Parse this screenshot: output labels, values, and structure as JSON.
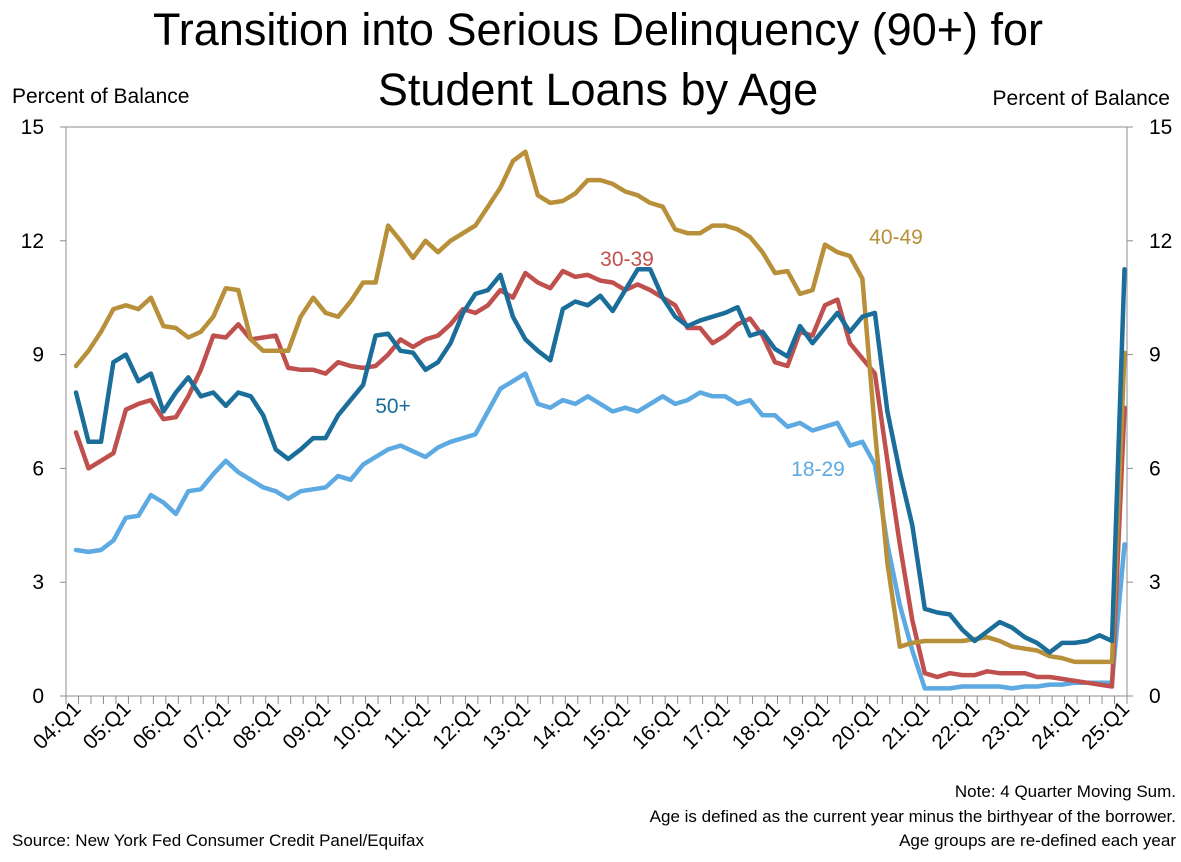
{
  "chart_data": {
    "type": "line",
    "title_line1": "Transition into Serious Delinquency (90+) for",
    "title_line2": "Student Loans by Age",
    "ylabel_left": "Percent of Balance",
    "ylabel_right": "Percent of Balance",
    "ylim": [
      0,
      15
    ],
    "yticks": [
      "0",
      "3",
      "6",
      "9",
      "12",
      "15"
    ],
    "x_tick_labels": [
      "04:Q1",
      "05:Q1",
      "06:Q1",
      "07:Q1",
      "08:Q1",
      "09:Q1",
      "10:Q1",
      "11:Q1",
      "12:Q1",
      "13:Q1",
      "14:Q1",
      "15:Q1",
      "16:Q1",
      "17:Q1",
      "18:Q1",
      "19:Q1",
      "20:Q1",
      "21:Q1",
      "22:Q1",
      "23:Q1",
      "24:Q1",
      "25:Q1"
    ],
    "x_start": "04:Q1",
    "x_end": "25:Q1",
    "grid": false,
    "legend": "inline labels",
    "series": [
      {
        "name": "18-29",
        "color": "#5DA9E1",
        "values": [
          3.85,
          3.8,
          3.85,
          4.1,
          4.7,
          4.75,
          5.3,
          5.1,
          4.8,
          5.4,
          5.45,
          5.85,
          6.2,
          5.9,
          5.7,
          5.5,
          5.4,
          5.2,
          5.4,
          5.45,
          5.5,
          5.8,
          5.7,
          6.1,
          6.3,
          6.5,
          6.6,
          6.45,
          6.3,
          6.55,
          6.7,
          6.8,
          6.9,
          7.5,
          8.1,
          8.3,
          8.5,
          7.7,
          7.6,
          7.8,
          7.7,
          7.9,
          7.7,
          7.5,
          7.6,
          7.5,
          7.7,
          7.9,
          7.7,
          7.8,
          8.0,
          7.9,
          7.9,
          7.7,
          7.8,
          7.4,
          7.4,
          7.1,
          7.2,
          7.0,
          7.1,
          7.2,
          6.6,
          6.7,
          6.1,
          4.0,
          2.4,
          1.2,
          0.2,
          0.2,
          0.2,
          0.25,
          0.25,
          0.25,
          0.25,
          0.2,
          0.25,
          0.25,
          0.3,
          0.3,
          0.35,
          0.35,
          0.35,
          0.35,
          4.0
        ]
      },
      {
        "name": "30-39",
        "color": "#C0504D",
        "values": [
          6.95,
          6.0,
          6.2,
          6.4,
          7.55,
          7.7,
          7.8,
          7.3,
          7.35,
          7.9,
          8.6,
          9.5,
          9.45,
          9.8,
          9.4,
          9.45,
          9.5,
          8.65,
          8.6,
          8.6,
          8.5,
          8.8,
          8.7,
          8.65,
          8.7,
          9.0,
          9.4,
          9.2,
          9.4,
          9.5,
          9.8,
          10.2,
          10.1,
          10.3,
          10.7,
          10.5,
          11.15,
          10.9,
          10.75,
          11.2,
          11.05,
          11.1,
          10.95,
          10.9,
          10.7,
          10.85,
          10.7,
          10.5,
          10.3,
          9.7,
          9.7,
          9.3,
          9.5,
          9.8,
          9.95,
          9.5,
          8.8,
          8.7,
          9.6,
          9.5,
          10.3,
          10.45,
          9.3,
          8.9,
          8.5,
          6.2,
          4.0,
          2.0,
          0.6,
          0.5,
          0.6,
          0.55,
          0.55,
          0.65,
          0.6,
          0.6,
          0.6,
          0.5,
          0.5,
          0.45,
          0.4,
          0.35,
          0.3,
          0.25,
          7.6
        ]
      },
      {
        "name": "40-49",
        "color": "#B8903A",
        "values": [
          8.7,
          9.1,
          9.6,
          10.2,
          10.3,
          10.2,
          10.5,
          9.75,
          9.7,
          9.45,
          9.6,
          10.0,
          10.75,
          10.7,
          9.4,
          9.1,
          9.1,
          9.1,
          10.0,
          10.5,
          10.1,
          10.0,
          10.4,
          10.9,
          10.9,
          12.4,
          12.0,
          11.55,
          12.0,
          11.7,
          12.0,
          12.2,
          12.4,
          12.9,
          13.4,
          14.1,
          14.35,
          13.2,
          13.0,
          13.05,
          13.25,
          13.6,
          13.6,
          13.5,
          13.3,
          13.2,
          13.0,
          12.9,
          12.3,
          12.2,
          12.2,
          12.4,
          12.4,
          12.3,
          12.1,
          11.7,
          11.15,
          11.2,
          10.6,
          10.7,
          11.9,
          11.7,
          11.6,
          11.0,
          7.0,
          3.5,
          1.3,
          1.4,
          1.45,
          1.45,
          1.45,
          1.45,
          1.5,
          1.55,
          1.45,
          1.3,
          1.25,
          1.2,
          1.05,
          1.0,
          0.9,
          0.9,
          0.9,
          0.9,
          9.05
        ]
      },
      {
        "name": "50+",
        "color": "#1A6E99",
        "values": [
          8.0,
          6.7,
          6.7,
          8.8,
          9.0,
          8.3,
          8.5,
          7.5,
          8.0,
          8.4,
          7.9,
          8.0,
          7.65,
          8.0,
          7.9,
          7.4,
          6.5,
          6.25,
          6.5,
          6.8,
          6.8,
          7.4,
          7.8,
          8.2,
          9.5,
          9.55,
          9.1,
          9.05,
          8.6,
          8.8,
          9.3,
          10.1,
          10.6,
          10.7,
          11.1,
          10.0,
          9.4,
          9.1,
          8.85,
          10.2,
          10.4,
          10.3,
          10.55,
          10.15,
          10.7,
          11.25,
          11.25,
          10.5,
          10.0,
          9.75,
          9.9,
          10.0,
          10.1,
          10.25,
          9.5,
          9.6,
          9.15,
          8.95,
          9.75,
          9.3,
          9.7,
          10.1,
          9.6,
          10.0,
          10.1,
          7.5,
          5.9,
          4.5,
          2.3,
          2.2,
          2.15,
          1.75,
          1.45,
          1.7,
          1.95,
          1.8,
          1.55,
          1.4,
          1.15,
          1.4,
          1.4,
          1.45,
          1.6,
          1.45,
          11.25
        ]
      }
    ],
    "series_label_text": [
      "18-29",
      "30-39",
      "40-49",
      "50+"
    ]
  },
  "footer": {
    "source": "Source: New York Fed Consumer Credit Panel/Equifax",
    "note1": "Note: 4 Quarter Moving Sum.",
    "note2": "Age is defined as the current year minus the birthyear of the borrower.",
    "note3": "Age groups are re-defined each year"
  }
}
